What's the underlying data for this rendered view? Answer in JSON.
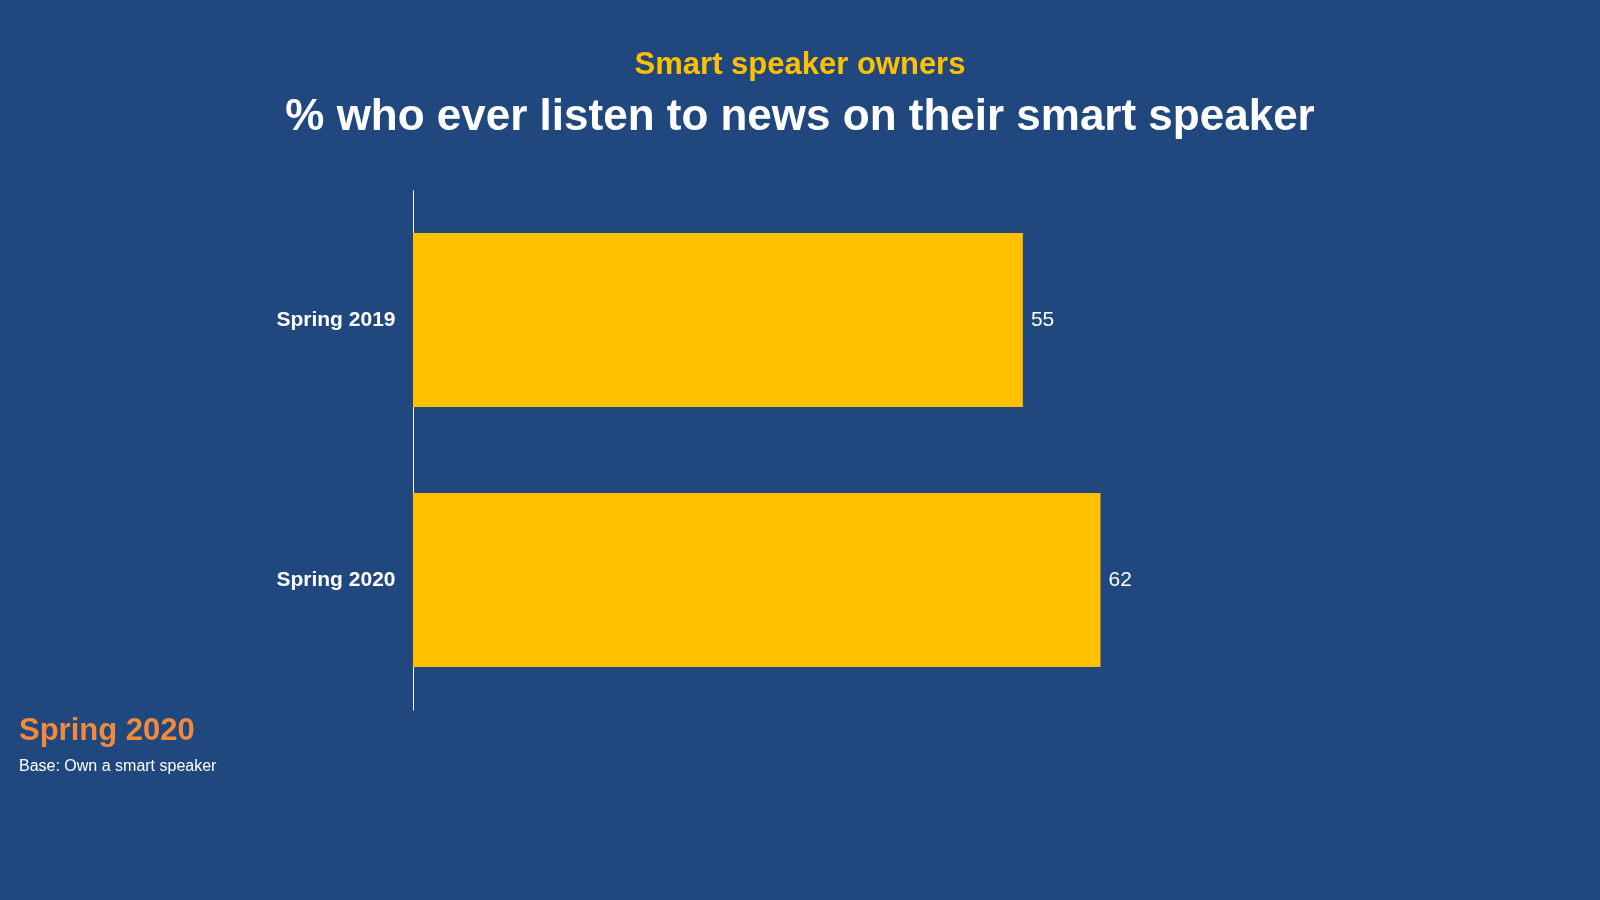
{
  "chart_data": {
    "type": "bar",
    "orientation": "horizontal",
    "title": "Smart speaker owners",
    "subtitle": "% who ever listen to news on their smart speaker",
    "categories": [
      "Spring 2019",
      "Spring 2020"
    ],
    "values": [
      55,
      62
    ],
    "color": "#ffc000",
    "data_labels": true,
    "grid": false,
    "annotations": [
      "Spring 2020",
      "Base: Own a smart speaker"
    ]
  }
}
